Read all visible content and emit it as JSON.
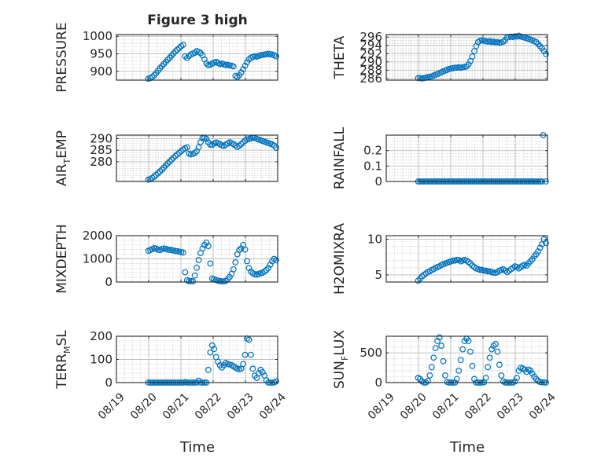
{
  "figure": {
    "title": "Figure 3 high",
    "marker_color": "#0072BD",
    "x_label": "Time",
    "x_ticks": [
      "08/19",
      "08/20",
      "08/21",
      "08/22",
      "08/23",
      "08/24"
    ]
  },
  "chart_data": [
    {
      "type": "scatter",
      "name": "pressure",
      "ylabel": "PRESSURE",
      "xlim": [
        0,
        5
      ],
      "ylim": [
        875,
        1005
      ],
      "yticks": [
        900,
        950,
        1000
      ],
      "grid": true,
      "x": [
        0.99,
        1.05,
        1.11,
        1.17,
        1.23,
        1.29,
        1.35,
        1.41,
        1.47,
        1.53,
        1.59,
        1.65,
        1.71,
        1.77,
        1.83,
        1.89,
        1.95,
        2.01,
        2.07,
        2.13,
        2.19,
        2.25,
        2.31,
        2.37,
        2.43,
        2.49,
        2.55,
        2.61,
        2.67,
        2.73,
        2.79,
        2.85,
        2.91,
        2.97,
        3.03,
        3.09,
        3.15,
        3.21,
        3.27,
        3.33,
        3.39,
        3.45,
        3.51,
        3.57,
        3.63,
        3.69,
        3.75,
        3.81,
        3.87,
        3.93,
        3.99,
        4.05,
        4.11,
        4.17,
        4.23,
        4.29,
        4.35,
        4.41,
        4.47,
        4.53,
        4.59,
        4.65,
        4.71,
        4.77,
        4.83,
        4.89,
        4.95
      ],
      "y": [
        879,
        881,
        884,
        889,
        895,
        902,
        909,
        915,
        921,
        927,
        933,
        939,
        945,
        951,
        957,
        962,
        967,
        972,
        976,
        943,
        938,
        944,
        948,
        951,
        953,
        958,
        956,
        952,
        946,
        934,
        923,
        918,
        919,
        922,
        925,
        927,
        924,
        921,
        922,
        920,
        918,
        919,
        917,
        916,
        914,
        887,
        884,
        889,
        897,
        906,
        916,
        926,
        934,
        939,
        941,
        943,
        942,
        944,
        946,
        947,
        948,
        949,
        950,
        949,
        948,
        946,
        943
      ]
    },
    {
      "type": "scatter",
      "name": "theta",
      "ylabel": "THETA",
      "xlim": [
        0,
        5
      ],
      "ylim": [
        285.6,
        296.6
      ],
      "yticks": [
        286,
        288,
        290,
        292,
        294,
        296
      ],
      "grid": true,
      "x": [
        0.99,
        1.05,
        1.11,
        1.17,
        1.23,
        1.29,
        1.35,
        1.41,
        1.47,
        1.53,
        1.59,
        1.65,
        1.71,
        1.77,
        1.83,
        1.89,
        1.95,
        2.01,
        2.07,
        2.13,
        2.19,
        2.25,
        2.31,
        2.37,
        2.43,
        2.49,
        2.55,
        2.61,
        2.67,
        2.73,
        2.79,
        2.85,
        2.91,
        2.97,
        3.03,
        3.09,
        3.15,
        3.21,
        3.27,
        3.33,
        3.39,
        3.45,
        3.51,
        3.57,
        3.63,
        3.69,
        3.75,
        3.81,
        3.87,
        3.93,
        3.99,
        4.05,
        4.11,
        4.17,
        4.23,
        4.29,
        4.35,
        4.41,
        4.47,
        4.53,
        4.59,
        4.65,
        4.71,
        4.77,
        4.83,
        4.89,
        4.95
      ],
      "y": [
        286.1,
        286.1,
        286.0,
        286.1,
        286.2,
        286.3,
        286.4,
        286.5,
        286.7,
        286.9,
        287.1,
        287.3,
        287.5,
        287.7,
        287.9,
        288.1,
        288.3,
        288.4,
        288.5,
        288.6,
        288.6,
        288.7,
        288.6,
        288.7,
        288.8,
        288.9,
        289.4,
        290.2,
        291.3,
        292.6,
        293.8,
        294.8,
        295.1,
        295.2,
        295.1,
        295.0,
        294.9,
        295.0,
        294.8,
        294.9,
        294.7,
        294.8,
        294.6,
        294.7,
        294.9,
        295.3,
        295.9,
        296.0,
        296.1,
        296.0,
        296.2,
        296.1,
        296.3,
        296.1,
        296.0,
        295.9,
        295.7,
        295.6,
        295.4,
        295.2,
        295.0,
        294.8,
        294.3,
        293.8,
        293.3,
        292.6,
        291.9
      ]
    },
    {
      "type": "scatter",
      "name": "air-temp",
      "ylabel": "AIR_TEMP",
      "xlim": [
        0,
        5
      ],
      "ylim": [
        271.5,
        291.5
      ],
      "yticks": [
        280,
        285,
        290
      ],
      "grid": true,
      "x": [
        0.99,
        1.05,
        1.11,
        1.17,
        1.23,
        1.29,
        1.35,
        1.41,
        1.47,
        1.53,
        1.59,
        1.65,
        1.71,
        1.77,
        1.83,
        1.89,
        1.95,
        2.01,
        2.07,
        2.13,
        2.19,
        2.25,
        2.31,
        2.37,
        2.43,
        2.49,
        2.55,
        2.61,
        2.67,
        2.73,
        2.79,
        2.85,
        2.91,
        2.97,
        3.03,
        3.09,
        3.15,
        3.21,
        3.27,
        3.33,
        3.39,
        3.45,
        3.51,
        3.57,
        3.63,
        3.69,
        3.75,
        3.81,
        3.87,
        3.93,
        3.99,
        4.05,
        4.11,
        4.17,
        4.23,
        4.29,
        4.35,
        4.41,
        4.47,
        4.53,
        4.59,
        4.65,
        4.71,
        4.77,
        4.83,
        4.89,
        4.95
      ],
      "y": [
        272.3,
        272.5,
        273.0,
        273.6,
        274.3,
        275.0,
        275.8,
        276.6,
        277.5,
        278.4,
        279.3,
        280.1,
        280.9,
        281.7,
        282.5,
        283.2,
        283.9,
        284.6,
        285.3,
        285.8,
        286.2,
        283.5,
        283.2,
        283.4,
        283.8,
        284.5,
        286.2,
        288.5,
        290.2,
        290.4,
        289.8,
        288.4,
        287.4,
        287.3,
        287.9,
        288.3,
        288.0,
        287.6,
        287.1,
        286.8,
        287.4,
        287.9,
        288.4,
        288.0,
        287.6,
        287.1,
        286.4,
        286.9,
        287.6,
        288.4,
        289.1,
        289.6,
        289.8,
        290.1,
        290.4,
        290.3,
        289.9,
        289.6,
        289.3,
        289.0,
        288.7,
        288.4,
        288.1,
        287.8,
        287.5,
        287.0,
        286.0
      ]
    },
    {
      "type": "scatter",
      "name": "rainfall",
      "ylabel": "RAINFALL",
      "xlim": [
        0,
        5
      ],
      "ylim": [
        -0.0,
        0.3
      ],
      "yticks": [
        0,
        0.1,
        0.2
      ],
      "grid": true,
      "x": [
        0.99,
        1.05,
        1.11,
        1.17,
        1.23,
        1.29,
        1.35,
        1.41,
        1.47,
        1.53,
        1.59,
        1.65,
        1.71,
        1.77,
        1.83,
        1.89,
        1.95,
        2.01,
        2.07,
        2.13,
        2.19,
        2.25,
        2.31,
        2.37,
        2.43,
        2.49,
        2.55,
        2.61,
        2.67,
        2.73,
        2.79,
        2.85,
        2.91,
        2.97,
        3.03,
        3.09,
        3.15,
        3.21,
        3.27,
        3.33,
        3.39,
        3.45,
        3.51,
        3.57,
        3.63,
        3.69,
        3.75,
        3.81,
        3.87,
        3.93,
        3.99,
        4.05,
        4.11,
        4.17,
        4.23,
        4.29,
        4.35,
        4.41,
        4.47,
        4.53,
        4.59,
        4.65,
        4.71,
        4.77,
        4.83,
        4.87,
        4.95
      ],
      "y": [
        0,
        0,
        0,
        0,
        0,
        0,
        0,
        0,
        0,
        0,
        0,
        0,
        0,
        0,
        0,
        0,
        0,
        0,
        0,
        0,
        0,
        0,
        0,
        0,
        0,
        0,
        0,
        0,
        0,
        0,
        0,
        0,
        0,
        0,
        0,
        0,
        0,
        0,
        0,
        0,
        0,
        0,
        0,
        0,
        0,
        0,
        0,
        0,
        0,
        0,
        0,
        0,
        0,
        0,
        0,
        0,
        0,
        0,
        0,
        0,
        0,
        0,
        0,
        0,
        0,
        0.3,
        0
      ]
    },
    {
      "type": "scatter",
      "name": "mixdepth",
      "ylabel": "MIXDEPTH",
      "xlim": [
        0,
        5
      ],
      "ylim": [
        0,
        2000
      ],
      "yticks": [
        0,
        1000,
        2000
      ],
      "grid": true,
      "x": [
        0.99,
        1.05,
        1.11,
        1.17,
        1.23,
        1.29,
        1.35,
        1.41,
        1.47,
        1.53,
        1.59,
        1.65,
        1.71,
        1.77,
        1.83,
        1.89,
        1.95,
        2.01,
        2.07,
        2.13,
        2.19,
        2.25,
        2.31,
        2.37,
        2.43,
        2.49,
        2.55,
        2.61,
        2.67,
        2.73,
        2.79,
        2.85,
        2.91,
        2.97,
        3.03,
        3.09,
        3.15,
        3.21,
        3.27,
        3.33,
        3.39,
        3.45,
        3.51,
        3.57,
        3.63,
        3.69,
        3.75,
        3.81,
        3.87,
        3.93,
        3.99,
        4.05,
        4.11,
        4.17,
        4.23,
        4.29,
        4.35,
        4.41,
        4.47,
        4.53,
        4.59,
        4.65,
        4.71,
        4.77,
        4.83,
        4.89,
        4.95
      ],
      "y": [
        1350,
        1380,
        1420,
        1460,
        1440,
        1400,
        1380,
        1420,
        1450,
        1430,
        1400,
        1390,
        1380,
        1360,
        1340,
        1330,
        1310,
        1290,
        1270,
        420,
        80,
        40,
        40,
        30,
        280,
        620,
        950,
        1250,
        1450,
        1600,
        1700,
        1550,
        800,
        150,
        120,
        90,
        60,
        40,
        30,
        30,
        50,
        120,
        220,
        350,
        550,
        850,
        1200,
        1380,
        1450,
        1600,
        1400,
        900,
        600,
        450,
        380,
        340,
        320,
        350,
        380,
        400,
        450,
        520,
        600,
        750,
        900,
        1000,
        950
      ]
    },
    {
      "type": "scatter",
      "name": "h2o-mixing-ratio",
      "ylabel": "H2OMIXRA",
      "xlim": [
        0,
        5
      ],
      "ylim": [
        4,
        10.5
      ],
      "yticks": [
        5,
        10
      ],
      "grid": true,
      "x": [
        0.99,
        1.05,
        1.11,
        1.17,
        1.23,
        1.29,
        1.35,
        1.41,
        1.47,
        1.53,
        1.59,
        1.65,
        1.71,
        1.77,
        1.83,
        1.89,
        1.95,
        2.01,
        2.07,
        2.13,
        2.19,
        2.25,
        2.31,
        2.37,
        2.43,
        2.49,
        2.55,
        2.61,
        2.67,
        2.73,
        2.79,
        2.85,
        2.91,
        2.97,
        3.03,
        3.09,
        3.15,
        3.21,
        3.27,
        3.33,
        3.39,
        3.45,
        3.51,
        3.57,
        3.63,
        3.69,
        3.75,
        3.81,
        3.87,
        3.93,
        3.99,
        4.05,
        4.11,
        4.17,
        4.23,
        4.29,
        4.35,
        4.41,
        4.47,
        4.53,
        4.59,
        4.65,
        4.71,
        4.77,
        4.83,
        4.89,
        4.95
      ],
      "y": [
        4.2,
        4.5,
        4.8,
        5.0,
        5.2,
        5.4,
        5.5,
        5.7,
        5.8,
        6.0,
        6.1,
        6.2,
        6.4,
        6.5,
        6.6,
        6.7,
        6.8,
        6.9,
        7.0,
        7.0,
        7.1,
        7.1,
        6.9,
        7.0,
        7.1,
        7.0,
        6.8,
        6.6,
        6.3,
        6.1,
        5.9,
        5.8,
        5.7,
        5.7,
        5.6,
        5.6,
        5.5,
        5.5,
        5.4,
        5.3,
        5.3,
        5.4,
        5.6,
        5.7,
        5.8,
        5.6,
        5.4,
        5.6,
        5.8,
        6.0,
        6.2,
        6.1,
        5.9,
        6.1,
        6.3,
        6.4,
        6.3,
        6.6,
        6.9,
        7.2,
        7.6,
        7.9,
        8.3,
        8.8,
        9.3,
        10.0,
        9.5
      ]
    },
    {
      "type": "scatter",
      "name": "terr-msl",
      "ylabel": "TERR_MSL",
      "xlim": [
        0,
        5
      ],
      "ylim": [
        0,
        200
      ],
      "yticks": [
        0,
        100,
        200
      ],
      "grid": true,
      "x": [
        0.99,
        1.05,
        1.11,
        1.17,
        1.23,
        1.29,
        1.35,
        1.41,
        1.47,
        1.53,
        1.59,
        1.65,
        1.71,
        1.77,
        1.83,
        1.89,
        1.95,
        2.01,
        2.07,
        2.13,
        2.19,
        2.25,
        2.31,
        2.37,
        2.43,
        2.49,
        2.55,
        2.61,
        2.67,
        2.73,
        2.79,
        2.85,
        2.91,
        2.97,
        3.03,
        3.09,
        3.15,
        3.21,
        3.27,
        3.33,
        3.39,
        3.45,
        3.51,
        3.57,
        3.63,
        3.69,
        3.75,
        3.81,
        3.87,
        3.93,
        3.99,
        4.05,
        4.11,
        4.17,
        4.23,
        4.29,
        4.35,
        4.41,
        4.47,
        4.53,
        4.59,
        4.65,
        4.71,
        4.77,
        4.83,
        4.89,
        4.95
      ],
      "y": [
        0,
        0,
        0,
        0,
        0,
        0,
        0,
        0,
        0,
        0,
        0,
        0,
        0,
        0,
        0,
        0,
        0,
        0,
        0,
        2,
        0,
        0,
        0,
        0,
        0,
        0,
        8,
        0,
        0,
        0,
        0,
        55,
        130,
        160,
        145,
        110,
        90,
        75,
        65,
        75,
        85,
        80,
        78,
        75,
        70,
        65,
        60,
        58,
        60,
        80,
        120,
        190,
        185,
        120,
        60,
        30,
        20,
        40,
        55,
        45,
        30,
        10,
        0,
        0,
        0,
        0,
        5
      ]
    },
    {
      "type": "scatter",
      "name": "sun-flux",
      "ylabel": "SUN_FLUX",
      "xlim": [
        0,
        5
      ],
      "ylim": [
        0,
        780
      ],
      "yticks": [
        0,
        500
      ],
      "grid": true,
      "x": [
        0.99,
        1.05,
        1.11,
        1.17,
        1.23,
        1.29,
        1.35,
        1.41,
        1.47,
        1.53,
        1.59,
        1.65,
        1.71,
        1.77,
        1.83,
        1.89,
        1.95,
        2.01,
        2.07,
        2.13,
        2.19,
        2.25,
        2.31,
        2.37,
        2.43,
        2.49,
        2.55,
        2.61,
        2.67,
        2.73,
        2.79,
        2.85,
        2.91,
        2.97,
        3.03,
        3.09,
        3.15,
        3.21,
        3.27,
        3.33,
        3.39,
        3.45,
        3.51,
        3.57,
        3.63,
        3.69,
        3.75,
        3.81,
        3.87,
        3.93,
        3.99,
        4.05,
        4.11,
        4.17,
        4.23,
        4.29,
        4.35,
        4.41,
        4.47,
        4.53,
        4.59,
        4.65,
        4.71,
        4.77,
        4.83,
        4.89,
        4.95
      ],
      "y": [
        80,
        60,
        20,
        0,
        0,
        30,
        120,
        260,
        420,
        580,
        700,
        760,
        620,
        360,
        120,
        10,
        0,
        0,
        0,
        0,
        60,
        200,
        380,
        560,
        700,
        740,
        700,
        520,
        280,
        60,
        0,
        0,
        0,
        0,
        5,
        80,
        260,
        420,
        560,
        620,
        650,
        520,
        300,
        120,
        20,
        0,
        0,
        0,
        0,
        0,
        20,
        80,
        200,
        250,
        240,
        220,
        180,
        220,
        200,
        150,
        100,
        60,
        30,
        10,
        5,
        2,
        0
      ]
    }
  ]
}
